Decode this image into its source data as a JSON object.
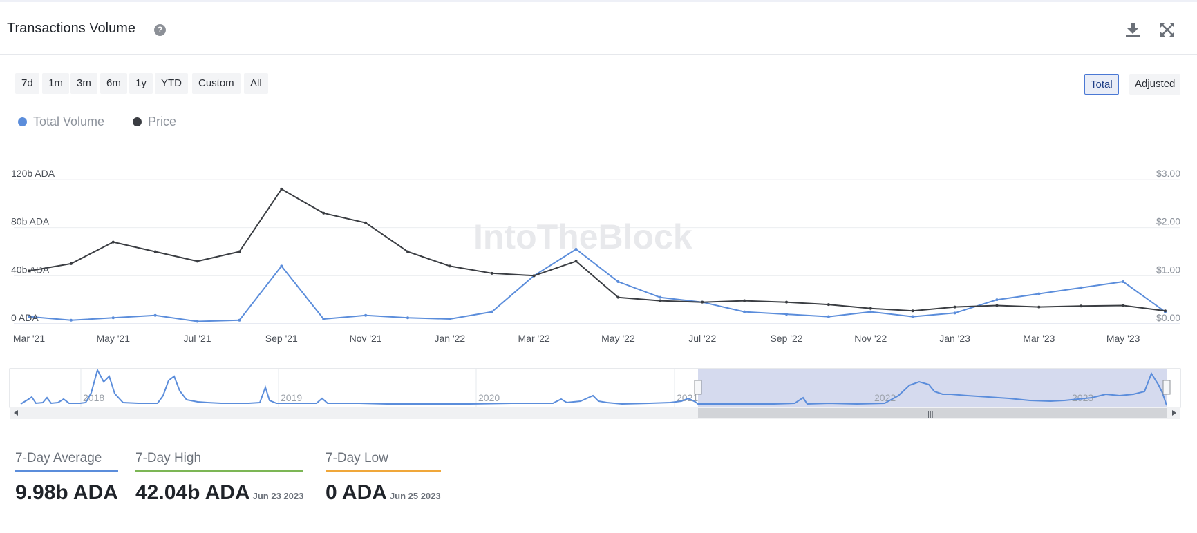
{
  "header": {
    "title": "Transactions Volume",
    "help_glyph": "?"
  },
  "toolbar": {
    "ranges": [
      "7d",
      "1m",
      "3m",
      "6m",
      "1y",
      "YTD",
      "Custom",
      "All"
    ],
    "modes": [
      "Total",
      "Adjusted"
    ],
    "active_mode": "Total"
  },
  "icons": {
    "help": "help-icon",
    "download": "download-icon",
    "fullscreen": "fullscreen-icon"
  },
  "legend": [
    {
      "label": "Total Volume",
      "color": "#5b8ddb"
    },
    {
      "label": "Price",
      "color": "#3a3d42"
    }
  ],
  "watermark": "IntoTheBlock",
  "chart_data": {
    "type": "line",
    "x": [
      "Mar '21",
      "Apr '21",
      "May '21",
      "Jun '21",
      "Jul '21",
      "Aug '21",
      "Sep '21",
      "Oct '21",
      "Nov '21",
      "Dec '21",
      "Jan '22",
      "Feb '22",
      "Mar '22",
      "Apr '22",
      "May '22",
      "Jun '22",
      "Jul '22",
      "Aug '22",
      "Sep '22",
      "Oct '22",
      "Nov '22",
      "Dec '22",
      "Jan '23",
      "Feb '23",
      "Mar '23",
      "Apr '23",
      "May '23",
      "Jun '23"
    ],
    "series": [
      {
        "name": "Total Volume",
        "axis": "left",
        "unit": "ADA",
        "color": "#5b8ddb",
        "values": [
          6000000000.0,
          3000000000.0,
          5000000000.0,
          7000000000.0,
          2000000000.0,
          3000000000.0,
          48000000000.0,
          4000000000.0,
          7000000000.0,
          5000000000.0,
          4000000000.0,
          10000000000.0,
          40000000000.0,
          62000000000.0,
          35000000000.0,
          22000000000.0,
          18000000000.0,
          10000000000.0,
          8000000000.0,
          6000000000.0,
          10000000000.0,
          6000000000.0,
          9000000000.0,
          20000000000.0,
          25000000000.0,
          30000000000.0,
          35000000000.0,
          10000000000.0
        ]
      },
      {
        "name": "Price",
        "axis": "right",
        "unit": "$",
        "color": "#3a3d42",
        "values": [
          1.1,
          1.25,
          1.7,
          1.5,
          1.3,
          1.5,
          2.8,
          2.3,
          2.1,
          1.5,
          1.2,
          1.05,
          1.0,
          1.3,
          0.55,
          0.48,
          0.45,
          0.48,
          0.45,
          0.4,
          0.32,
          0.27,
          0.35,
          0.38,
          0.35,
          0.37,
          0.38,
          0.27
        ]
      }
    ],
    "y_left": {
      "ticks": [
        "0 ADA",
        "40b ADA",
        "80b ADA",
        "120b ADA"
      ],
      "range": [
        0,
        120000000000
      ]
    },
    "y_right": {
      "ticks": [
        "$0.00",
        "$1.00",
        "$2.00",
        "$3.00"
      ],
      "range": [
        0,
        3
      ]
    },
    "grid": true,
    "legend_position": "top-left"
  },
  "navigator": {
    "labels": [
      "2018",
      "2019",
      "2020",
      "2021",
      "2022",
      "2023"
    ],
    "selected_range": [
      "Mar '21",
      "Jun '23"
    ]
  },
  "stats": [
    {
      "label": "7-Day Average",
      "value": "9.98b ADA",
      "date": "",
      "color": "#5b8ddb"
    },
    {
      "label": "7-Day High",
      "value": "42.04b ADA",
      "date": "Jun 23 2023",
      "color": "#7cb655"
    },
    {
      "label": "7-Day Low",
      "value": "0 ADA",
      "date": "Jun 25 2023",
      "color": "#f0a73a"
    }
  ]
}
